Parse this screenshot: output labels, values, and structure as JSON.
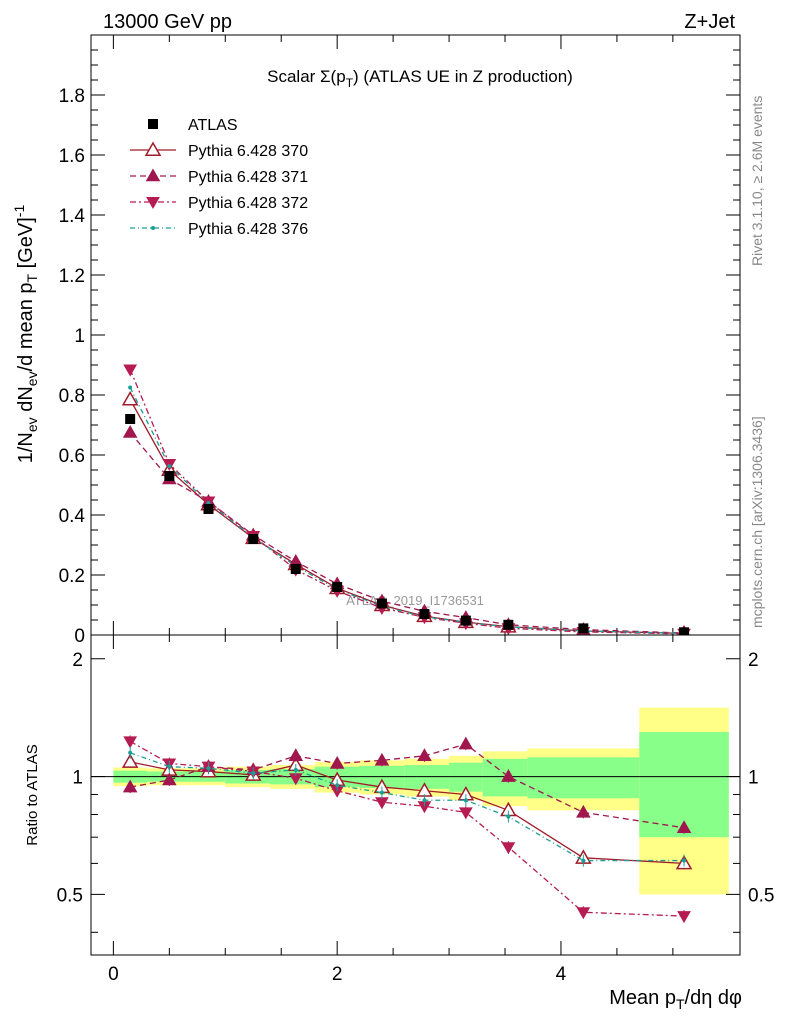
{
  "header": {
    "left": "13000 GeV pp",
    "right": "Z+Jet"
  },
  "side_text": {
    "rivet": "Rivet 3.1.10, ≥ 2.6M events",
    "mcplots": "mcplots.cern.ch [arXiv:1306.3436]"
  },
  "watermark": "ATLAS_2019_I1736531",
  "colors": {
    "atlas": "#000000",
    "p370": "#a01c2a",
    "p371": "#a0174d",
    "p372": "#b51c52",
    "p376": "#1a9e96",
    "band_yellow": "#ffff88",
    "band_green": "#88ff88"
  },
  "chart_data": [
    {
      "type": "line",
      "title": "Scalar Σ(pT) (ATLAS UE in Z production)",
      "ylabel": "1/Nev dNev/d mean pT [GeV]-1",
      "xlim": [
        -0.2,
        5.6
      ],
      "ylim": [
        0,
        2.0
      ],
      "y_ticks": [
        "0",
        "0.2",
        "0.4",
        "0.6",
        "0.8",
        "1",
        "1.2",
        "1.4",
        "1.6",
        "1.8"
      ],
      "x": [
        0.15,
        0.5,
        0.85,
        1.25,
        1.63,
        2.0,
        2.4,
        2.78,
        3.15,
        3.53,
        4.2,
        5.1
      ],
      "legend": [
        "ATLAS",
        "Pythia 6.428 370",
        "Pythia 6.428 371",
        "Pythia 6.428 372",
        "Pythia 6.428 376"
      ],
      "series": [
        {
          "name": "ATLAS",
          "values": [
            0.72,
            0.53,
            0.42,
            0.32,
            0.22,
            0.16,
            0.105,
            0.07,
            0.048,
            0.034,
            0.022,
            0.009
          ]
        },
        {
          "name": "Pythia 6.428 370",
          "values": [
            0.785,
            0.55,
            0.435,
            0.323,
            0.236,
            0.156,
            0.099,
            0.063,
            0.043,
            0.028,
            0.0135,
            0.0054
          ]
        },
        {
          "name": "Pythia 6.428 371",
          "values": [
            0.675,
            0.52,
            0.445,
            0.333,
            0.245,
            0.17,
            0.113,
            0.079,
            0.058,
            0.034,
            0.018,
            0.0067
          ]
        },
        {
          "name": "Pythia 6.428 372",
          "values": [
            0.885,
            0.57,
            0.445,
            0.33,
            0.218,
            0.147,
            0.09,
            0.059,
            0.039,
            0.0225,
            0.01,
            0.004
          ]
        },
        {
          "name": "Pythia 6.428 376",
          "values": [
            0.825,
            0.563,
            0.44,
            0.325,
            0.23,
            0.152,
            0.096,
            0.061,
            0.042,
            0.027,
            0.0135,
            0.0055
          ]
        }
      ]
    },
    {
      "type": "line",
      "ylabel": "Ratio to ATLAS",
      "xlabel": "Mean pT/dη dφ",
      "xlim": [
        -0.2,
        5.6
      ],
      "ylim": [
        0.35,
        2.3
      ],
      "x_ticks": [
        "0",
        "2",
        "4"
      ],
      "y_ticks": [
        "0.5",
        "1",
        "2"
      ],
      "x": [
        0.15,
        0.5,
        0.85,
        1.25,
        1.63,
        2.0,
        2.4,
        2.78,
        3.15,
        3.53,
        4.2,
        5.1
      ],
      "bin_edges": [
        0,
        0.3,
        0.7,
        1.0,
        1.4,
        1.8,
        2.2,
        2.6,
        3.0,
        3.3,
        3.7,
        4.7,
        5.5
      ],
      "band_yellow": [
        0.055,
        0.05,
        0.05,
        0.06,
        0.07,
        0.09,
        0.1,
        0.11,
        0.13,
        0.16,
        0.18,
        0.5
      ],
      "band_green": [
        0.035,
        0.03,
        0.03,
        0.04,
        0.045,
        0.06,
        0.065,
        0.07,
        0.085,
        0.11,
        0.12,
        0.3
      ],
      "series": [
        {
          "name": "Pythia 6.428 370",
          "values": [
            1.09,
            1.04,
            1.03,
            1.01,
            1.07,
            0.98,
            0.94,
            0.92,
            0.9,
            0.82,
            0.62,
            0.6
          ]
        },
        {
          "name": "Pythia 6.428 371",
          "values": [
            0.94,
            0.98,
            1.06,
            1.04,
            1.13,
            1.08,
            1.1,
            1.13,
            1.21,
            1.0,
            0.81,
            0.74
          ]
        },
        {
          "name": "Pythia 6.428 372",
          "values": [
            1.23,
            1.08,
            1.06,
            1.03,
            0.99,
            0.92,
            0.86,
            0.84,
            0.81,
            0.66,
            0.45,
            0.44
          ]
        },
        {
          "name": "Pythia 6.428 376",
          "values": [
            1.15,
            1.06,
            1.05,
            1.02,
            1.04,
            0.95,
            0.91,
            0.87,
            0.87,
            0.79,
            0.61,
            0.61
          ]
        }
      ]
    }
  ]
}
